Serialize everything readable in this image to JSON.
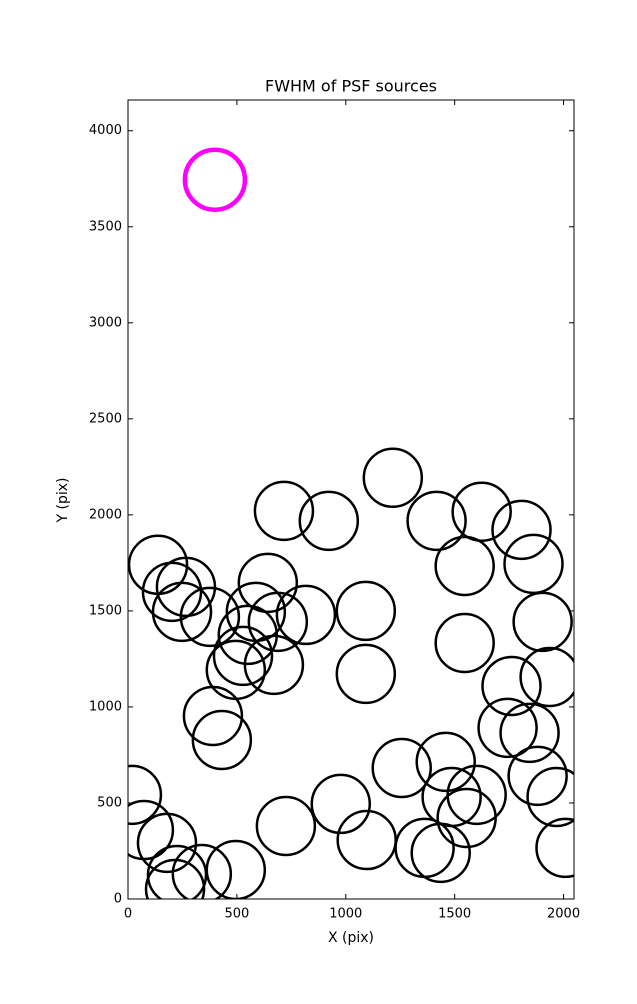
{
  "chart_data": {
    "type": "scatter",
    "title": "FWHM of PSF sources",
    "x_label": "X (pix)",
    "y_label": "Y (pix)",
    "xlim": [
      0,
      2048
    ],
    "ylim": [
      0,
      4160
    ],
    "xticks": [
      0,
      500,
      1000,
      1500,
      2000
    ],
    "yticks": [
      0,
      500,
      1000,
      1500,
      2000,
      2500,
      3000,
      3500,
      4000
    ],
    "series": [
      {
        "color": "#000000",
        "x": [
          138,
          266,
          202,
          248,
          376,
          642,
          716,
          922,
          587,
          688,
          817,
          550,
          528,
          495,
          670,
          1092,
          1092,
          1216,
          1417,
          1624,
          1807,
          1546,
          1862,
          1904,
          1546,
          1936,
          1761,
          1743,
          1844,
          1881,
          1968,
          2009,
          390,
          431,
          18,
          73,
          179,
          225,
          216,
          339,
          495,
          725,
          977,
          1096,
          1257,
          1459,
          1486,
          1601,
          1555,
          1362,
          1436
        ],
        "y": [
          1740,
          1625,
          1599,
          1495,
          1469,
          1646,
          2021,
          1969,
          1495,
          1443,
          1479,
          1375,
          1266,
          1193,
          1219,
          1500,
          1172,
          2193,
          1969,
          2016,
          1922,
          1734,
          1745,
          1443,
          1333,
          1156,
          1109,
          891,
          865,
          641,
          531,
          266,
          953,
          828,
          542,
          359,
          292,
          125,
          52,
          130,
          151,
          380,
          495,
          307,
          682,
          714,
          531,
          542,
          422,
          266,
          240
        ],
        "sizes": [
          2.9,
          2.9,
          2.9,
          2.9,
          2.9,
          2.9,
          2.9,
          2.9,
          2.9,
          2.9,
          2.9,
          2.9,
          2.9,
          2.9,
          2.9,
          2.9,
          2.9,
          2.9,
          2.9,
          2.9,
          2.9,
          2.9,
          2.9,
          2.9,
          2.9,
          2.9,
          2.9,
          2.9,
          2.9,
          2.9,
          2.9,
          2.9,
          2.9,
          2.9,
          2.9,
          2.9,
          2.9,
          2.9,
          2.9,
          2.9,
          2.9,
          2.9,
          2.9,
          2.9,
          2.9,
          2.9,
          2.9,
          2.9,
          2.9,
          2.9,
          2.9
        ]
      },
      {
        "color": "#ff00ff",
        "x": [
          399
        ],
        "y": [
          3745
        ],
        "sizes": [
          3.0
        ]
      }
    ]
  }
}
